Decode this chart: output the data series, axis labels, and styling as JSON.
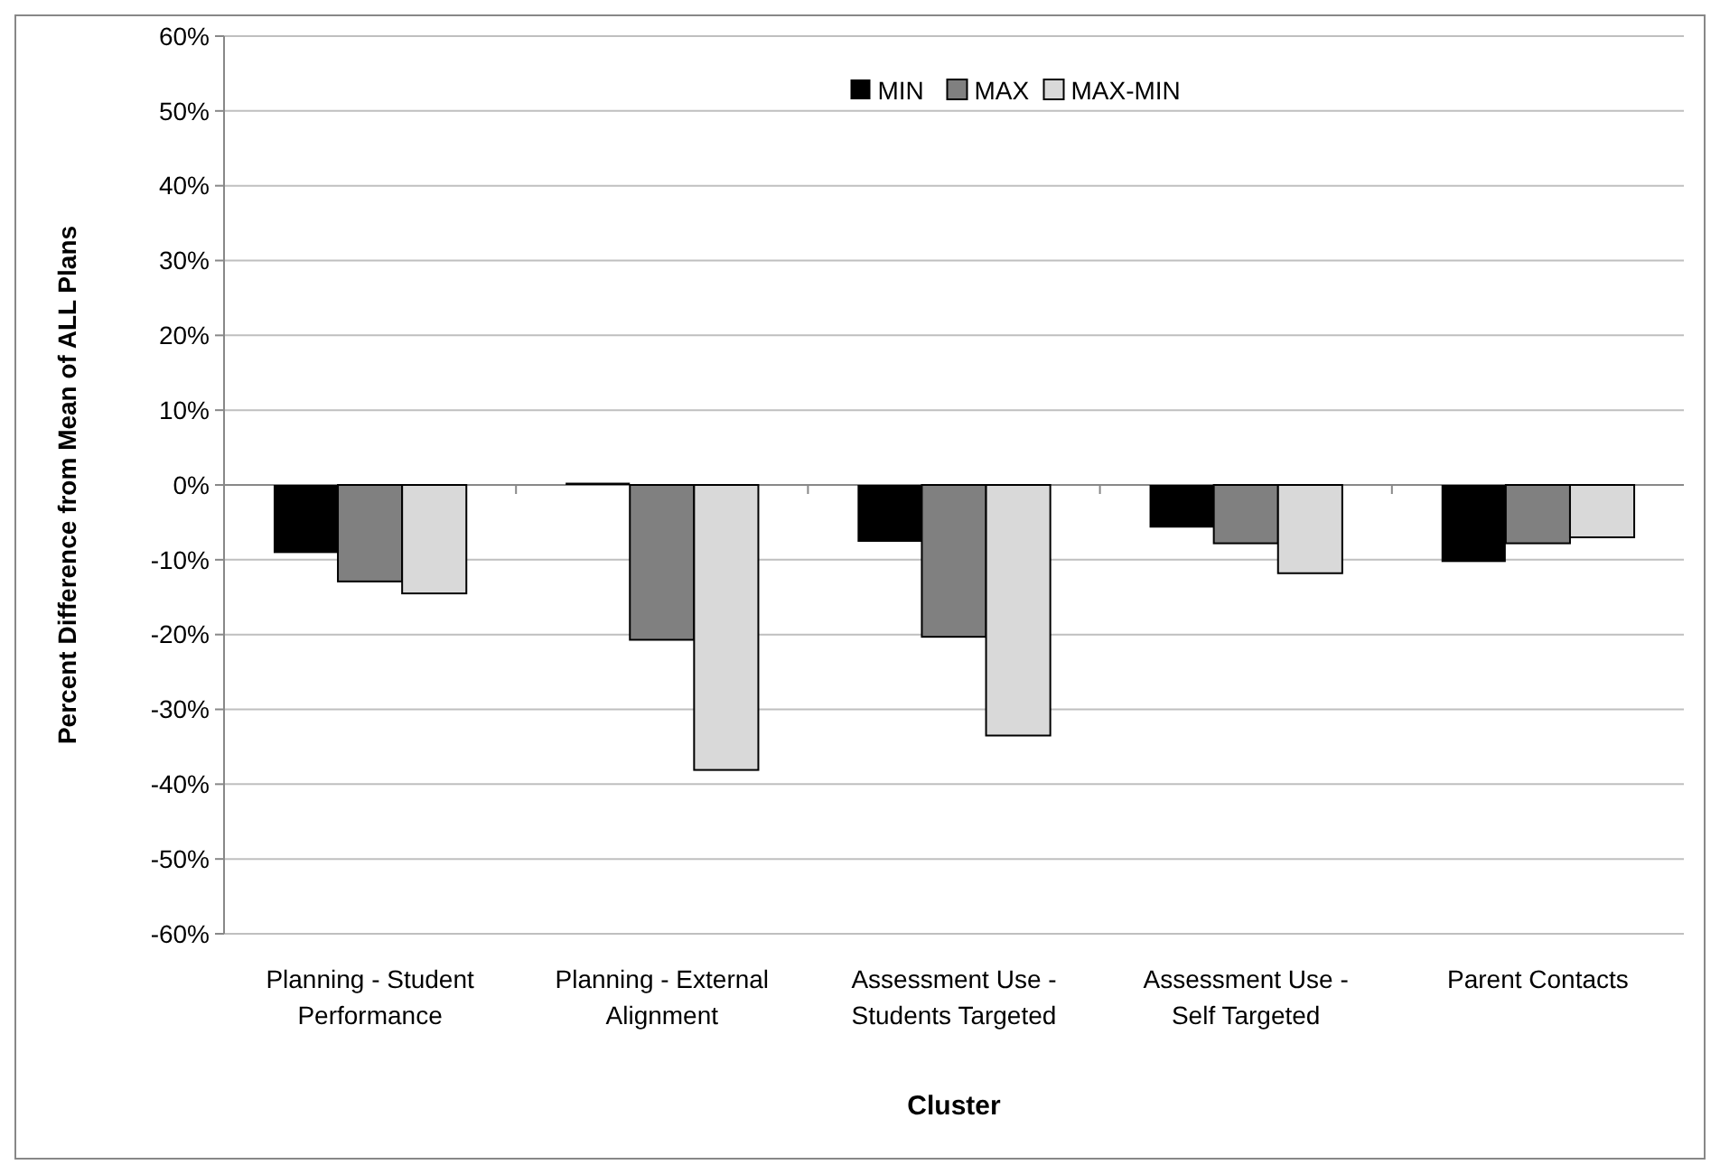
{
  "chart_data": {
    "type": "bar",
    "xlabel": "Cluster",
    "ylabel": "Percent Difference from Mean of ALL Plans",
    "categories": [
      "Planning - Student Performance",
      "Planning - External Alignment",
      "Assessment Use - Students Targeted",
      "Assessment Use - Self Targeted",
      "Parent Contacts"
    ],
    "series": [
      {
        "name": "MIN",
        "color": "#000000",
        "values": [
          -9.1,
          0.3,
          -7.6,
          -5.7,
          -10.3
        ]
      },
      {
        "name": "MAX",
        "color": "#808080",
        "values": [
          -12.9,
          -20.7,
          -20.3,
          -7.8,
          -7.8
        ]
      },
      {
        "name": "MAX-MIN",
        "color": "#d9d9d9",
        "values": [
          -14.5,
          -38.1,
          -33.5,
          -11.8,
          -7.0
        ]
      }
    ],
    "ylim": [
      -60,
      60
    ],
    "yticks": [
      {
        "value": -60,
        "label": "-60%"
      },
      {
        "value": -50,
        "label": "-50%"
      },
      {
        "value": -40,
        "label": "-40%"
      },
      {
        "value": -30,
        "label": "-30%"
      },
      {
        "value": -20,
        "label": "-20%"
      },
      {
        "value": -10,
        "label": "-10%"
      },
      {
        "value": 0,
        "label": "0%"
      },
      {
        "value": 10,
        "label": "10%"
      },
      {
        "value": 20,
        "label": "20%"
      },
      {
        "value": 30,
        "label": "30%"
      },
      {
        "value": 40,
        "label": "40%"
      },
      {
        "value": 50,
        "label": "50%"
      },
      {
        "value": 60,
        "label": "60%"
      }
    ],
    "grid": "y",
    "legend": "top"
  }
}
